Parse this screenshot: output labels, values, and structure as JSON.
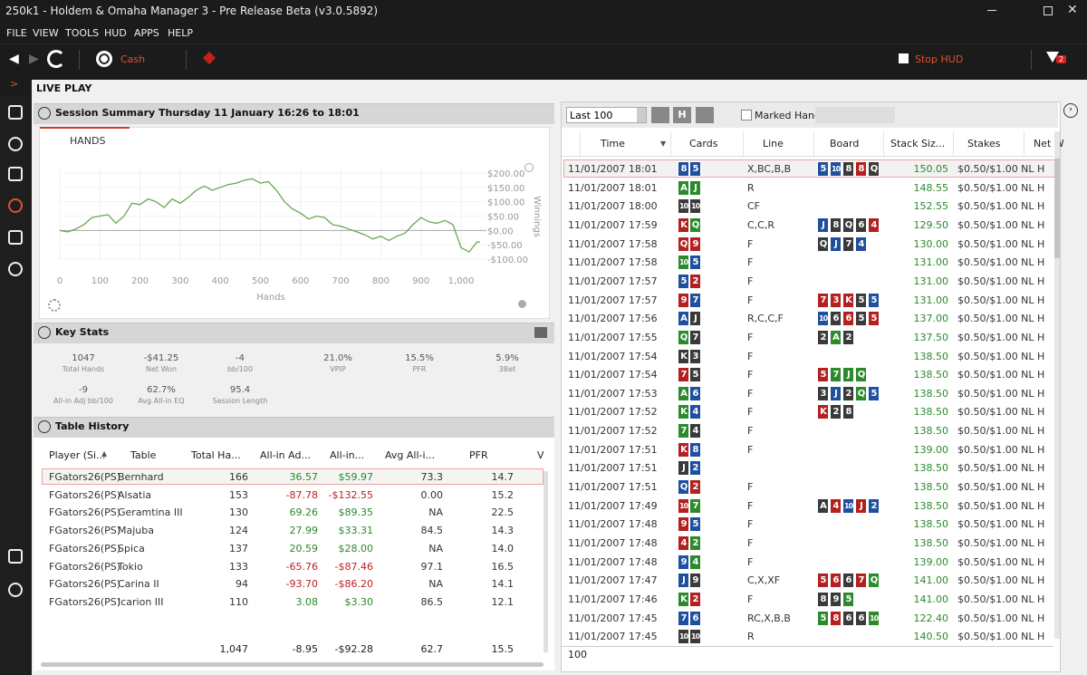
{
  "title_bar": "250k1 - Holdem & Omaha Manager 3 - Pre Release Beta (v3.0.5892)",
  "menu": [
    "FILE",
    "VIEW",
    "TOOLS",
    "HUD",
    "APPS",
    "HELP"
  ],
  "toolbar": {
    "cash": "Cash",
    "stop_hud": "Stop HUD",
    "filter_badge": "2"
  },
  "page_title": "LIVE PLAY",
  "session_summary": {
    "title": "Session Summary Thursday 11 January 16:26 to 18:01",
    "tab": "HANDS",
    "chart": {
      "type": "line",
      "color": "#6aa84f",
      "grid": true,
      "x_label": "Hands",
      "y_label": "Winnings",
      "x": [
        0,
        20,
        40,
        60,
        80,
        100,
        120,
        140,
        160,
        180,
        200,
        220,
        240,
        260,
        280,
        300,
        320,
        340,
        360,
        380,
        400,
        420,
        440,
        460,
        480,
        500,
        520,
        540,
        560,
        580,
        600,
        620,
        640,
        660,
        680,
        700,
        720,
        740,
        760,
        780,
        800,
        820,
        840,
        860,
        880,
        900,
        920,
        940,
        960,
        980,
        1000,
        1020,
        1040,
        1047
      ],
      "values": [
        0,
        -5,
        5,
        20,
        45,
        50,
        55,
        25,
        50,
        95,
        90,
        110,
        100,
        80,
        110,
        95,
        115,
        140,
        155,
        140,
        150,
        160,
        165,
        175,
        180,
        165,
        170,
        140,
        100,
        75,
        60,
        40,
        50,
        45,
        20,
        15,
        5,
        -5,
        -15,
        -30,
        -20,
        -35,
        -20,
        -10,
        20,
        45,
        30,
        25,
        35,
        20,
        -60,
        -75,
        -40,
        -41.25
      ],
      "xlim": [
        0,
        1050
      ],
      "ylim": [
        -100,
        200
      ],
      "xticks": [
        0,
        100,
        200,
        300,
        400,
        500,
        600,
        700,
        800,
        900,
        {
          "value": 1000,
          "label": "1,000"
        }
      ],
      "yticks": [
        {
          "value": 200,
          "label": "$200.00"
        },
        {
          "value": 150,
          "label": "$150.00"
        },
        {
          "value": 100,
          "label": "$100.00"
        },
        {
          "value": 50,
          "label": "$50.00"
        },
        {
          "value": 0,
          "label": "$0.00"
        },
        {
          "value": -50,
          "label": "-$50.00"
        },
        {
          "value": -100,
          "label": "-$100.00"
        }
      ]
    }
  },
  "key_stats": {
    "title": "Key Stats",
    "stats": [
      {
        "value": "1047",
        "label": "Total Hands"
      },
      {
        "value": "-$41.25",
        "label": "Net Won"
      },
      {
        "value": "-4",
        "label": "bb/100"
      },
      {
        "value": "21.0%",
        "label": "VPIP"
      },
      {
        "value": "15.5%",
        "label": "PFR"
      },
      {
        "value": "5.9%",
        "label": "3Bet"
      },
      {
        "value": "-9",
        "label": "All-in Adj bb/100"
      },
      {
        "value": "62.7%",
        "label": "Avg All-in EQ"
      },
      {
        "value": "95.4",
        "label": "Session Length"
      }
    ]
  },
  "table_history": {
    "title": "Table History",
    "columns": [
      "Player (Si...",
      "Table",
      "Total Ha...",
      "All-in Ad...",
      "All-in...",
      "Avg All-i...",
      "PFR",
      "V"
    ],
    "rows": [
      [
        "FGators26(PS)",
        "Bernhard",
        "166",
        "36.57",
        "$59.97",
        "73.3",
        "14.7"
      ],
      [
        "FGators26(PS)",
        "Alsatia",
        "153",
        "-87.78",
        "-$132.55",
        "0.00",
        "15.2"
      ],
      [
        "FGators26(PS)",
        "Geramtina III",
        "130",
        "69.26",
        "$89.35",
        "NA",
        "22.5"
      ],
      [
        "FGators26(PS)",
        "Majuba",
        "124",
        "27.99",
        "$33.31",
        "84.5",
        "14.3"
      ],
      [
        "FGators26(PS)",
        "Spica",
        "137",
        "20.59",
        "$28.00",
        "NA",
        "14.0"
      ],
      [
        "FGators26(PS)",
        "Tokio",
        "133",
        "-65.76",
        "-$87.46",
        "97.1",
        "16.5"
      ],
      [
        "FGators26(PS)",
        "Carina II",
        "94",
        "-93.70",
        "-$86.20",
        "NA",
        "14.1"
      ],
      [
        "FGators26(PS)",
        "Icarion III",
        "110",
        "3.08",
        "$3.30",
        "86.5",
        "12.1"
      ]
    ],
    "totals": [
      "1,047",
      "-8.95",
      "-$92.28",
      "62.7",
      "15.5"
    ]
  },
  "hands": {
    "filter": "Last 100",
    "h_button": "H",
    "marked": "Marked Hands",
    "footer": "100",
    "suit_colors": {
      "r": "#b3201f",
      "b": "#1f4f9f",
      "g": "#2c8a2c",
      "k": "#3a3a3a"
    },
    "columns": [
      "Time",
      "Cards",
      "Line",
      "Board",
      "Stack Siz...",
      "Stakes",
      "Net W"
    ],
    "rows": [
      {
        "time": "11/01/2007 18:01",
        "cards": [
          {
            "rank": "8",
            "suit": "b"
          },
          {
            "rank": "5",
            "suit": "b"
          }
        ],
        "line": "X,BC,B,B",
        "board": [
          {
            "rank": "5",
            "suit": "b"
          },
          {
            "rank": "10",
            "suit": "b"
          },
          {
            "rank": "8",
            "suit": "k"
          },
          {
            "rank": "8",
            "suit": "r"
          },
          {
            "rank": "Q",
            "suit": "k"
          }
        ],
        "stack": "150.05",
        "stakes": "$0.50/$1.00 NL H"
      },
      {
        "time": "11/01/2007 18:01",
        "cards": [
          {
            "rank": "A",
            "suit": "g"
          },
          {
            "rank": "J",
            "suit": "g"
          }
        ],
        "line": "R",
        "board": [],
        "stack": "148.55",
        "stakes": "$0.50/$1.00 NL H"
      },
      {
        "time": "11/01/2007 18:00",
        "cards": [
          {
            "rank": "10",
            "suit": "k"
          },
          {
            "rank": "10",
            "suit": "k"
          }
        ],
        "line": "CF",
        "board": [],
        "stack": "152.55",
        "stakes": "$0.50/$1.00 NL H"
      },
      {
        "time": "11/01/2007 17:59",
        "cards": [
          {
            "rank": "K",
            "suit": "r"
          },
          {
            "rank": "Q",
            "suit": "g"
          }
        ],
        "line": "C,C,R",
        "board": [
          {
            "rank": "J",
            "suit": "b"
          },
          {
            "rank": "8",
            "suit": "k"
          },
          {
            "rank": "Q",
            "suit": "k"
          },
          {
            "rank": "6",
            "suit": "k"
          },
          {
            "rank": "4",
            "suit": "r"
          }
        ],
        "stack": "129.50",
        "stakes": "$0.50/$1.00 NL H"
      },
      {
        "time": "11/01/2007 17:58",
        "cards": [
          {
            "rank": "Q",
            "suit": "r"
          },
          {
            "rank": "9",
            "suit": "r"
          }
        ],
        "line": "F",
        "board": [
          {
            "rank": "Q",
            "suit": "k"
          },
          {
            "rank": "J",
            "suit": "b"
          },
          {
            "rank": "7",
            "suit": "k"
          },
          {
            "rank": "4",
            "suit": "b"
          }
        ],
        "stack": "130.00",
        "stakes": "$0.50/$1.00 NL H"
      },
      {
        "time": "11/01/2007 17:58",
        "cards": [
          {
            "rank": "10",
            "suit": "g"
          },
          {
            "rank": "5",
            "suit": "b"
          }
        ],
        "line": "F",
        "board": [],
        "stack": "131.00",
        "stakes": "$0.50/$1.00 NL H"
      },
      {
        "time": "11/01/2007 17:57",
        "cards": [
          {
            "rank": "5",
            "suit": "b"
          },
          {
            "rank": "2",
            "suit": "r"
          }
        ],
        "line": "F",
        "board": [],
        "stack": "131.00",
        "stakes": "$0.50/$1.00 NL H"
      },
      {
        "time": "11/01/2007 17:57",
        "cards": [
          {
            "rank": "9",
            "suit": "r"
          },
          {
            "rank": "7",
            "suit": "b"
          }
        ],
        "line": "F",
        "board": [
          {
            "rank": "7",
            "suit": "r"
          },
          {
            "rank": "3",
            "suit": "r"
          },
          {
            "rank": "K",
            "suit": "r"
          },
          {
            "rank": "5",
            "suit": "k"
          },
          {
            "rank": "5",
            "suit": "b"
          }
        ],
        "stack": "131.00",
        "stakes": "$0.50/$1.00 NL H"
      },
      {
        "time": "11/01/2007 17:56",
        "cards": [
          {
            "rank": "A",
            "suit": "b"
          },
          {
            "rank": "J",
            "suit": "k"
          }
        ],
        "line": "R,C,C,F",
        "board": [
          {
            "rank": "10",
            "suit": "b"
          },
          {
            "rank": "6",
            "suit": "k"
          },
          {
            "rank": "6",
            "suit": "r"
          },
          {
            "rank": "5",
            "suit": "k"
          },
          {
            "rank": "5",
            "suit": "r"
          }
        ],
        "stack": "137.00",
        "stakes": "$0.50/$1.00 NL H"
      },
      {
        "time": "11/01/2007 17:55",
        "cards": [
          {
            "rank": "Q",
            "suit": "g"
          },
          {
            "rank": "7",
            "suit": "k"
          }
        ],
        "line": "F",
        "board": [
          {
            "rank": "2",
            "suit": "k"
          },
          {
            "rank": "A",
            "suit": "g"
          },
          {
            "rank": "2",
            "suit": "k"
          }
        ],
        "stack": "137.50",
        "stakes": "$0.50/$1.00 NL H"
      },
      {
        "time": "11/01/2007 17:54",
        "cards": [
          {
            "rank": "K",
            "suit": "k"
          },
          {
            "rank": "3",
            "suit": "k"
          }
        ],
        "line": "F",
        "board": [],
        "stack": "138.50",
        "stakes": "$0.50/$1.00 NL H"
      },
      {
        "time": "11/01/2007 17:54",
        "cards": [
          {
            "rank": "7",
            "suit": "r"
          },
          {
            "rank": "5",
            "suit": "k"
          }
        ],
        "line": "F",
        "board": [
          {
            "rank": "5",
            "suit": "r"
          },
          {
            "rank": "7",
            "suit": "g"
          },
          {
            "rank": "J",
            "suit": "g"
          },
          {
            "rank": "Q",
            "suit": "g"
          }
        ],
        "stack": "138.50",
        "stakes": "$0.50/$1.00 NL H"
      },
      {
        "time": "11/01/2007 17:53",
        "cards": [
          {
            "rank": "A",
            "suit": "g"
          },
          {
            "rank": "6",
            "suit": "b"
          }
        ],
        "line": "F",
        "board": [
          {
            "rank": "3",
            "suit": "k"
          },
          {
            "rank": "J",
            "suit": "b"
          },
          {
            "rank": "2",
            "suit": "k"
          },
          {
            "rank": "Q",
            "suit": "g"
          },
          {
            "rank": "5",
            "suit": "b"
          }
        ],
        "stack": "138.50",
        "stakes": "$0.50/$1.00 NL H"
      },
      {
        "time": "11/01/2007 17:52",
        "cards": [
          {
            "rank": "K",
            "suit": "g"
          },
          {
            "rank": "4",
            "suit": "b"
          }
        ],
        "line": "F",
        "board": [
          {
            "rank": "K",
            "suit": "r"
          },
          {
            "rank": "2",
            "suit": "k"
          },
          {
            "rank": "8",
            "suit": "k"
          }
        ],
        "stack": "138.50",
        "stakes": "$0.50/$1.00 NL H"
      },
      {
        "time": "11/01/2007 17:52",
        "cards": [
          {
            "rank": "7",
            "suit": "g"
          },
          {
            "rank": "4",
            "suit": "k"
          }
        ],
        "line": "F",
        "board": [],
        "stack": "138.50",
        "stakes": "$0.50/$1.00 NL H"
      },
      {
        "time": "11/01/2007 17:51",
        "cards": [
          {
            "rank": "K",
            "suit": "r"
          },
          {
            "rank": "8",
            "suit": "b"
          }
        ],
        "line": "F",
        "board": [],
        "stack": "139.00",
        "stakes": "$0.50/$1.00 NL H"
      },
      {
        "time": "11/01/2007 17:51",
        "cards": [
          {
            "rank": "J",
            "suit": "k"
          },
          {
            "rank": "2",
            "suit": "b"
          }
        ],
        "board": [],
        "stack": "138.50",
        "stakes": "$0.50/$1.00 NL H"
      },
      {
        "time": "11/01/2007 17:51",
        "cards": [
          {
            "rank": "Q",
            "suit": "b"
          },
          {
            "rank": "2",
            "suit": "r"
          }
        ],
        "line": "F",
        "board": [],
        "stack": "138.50",
        "stakes": "$0.50/$1.00 NL H"
      },
      {
        "time": "11/01/2007 17:49",
        "cards": [
          {
            "rank": "10",
            "suit": "r"
          },
          {
            "rank": "7",
            "suit": "g"
          }
        ],
        "line": "F",
        "board": [
          {
            "rank": "A",
            "suit": "k"
          },
          {
            "rank": "4",
            "suit": "r"
          },
          {
            "rank": "10",
            "suit": "b"
          },
          {
            "rank": "J",
            "suit": "r"
          },
          {
            "rank": "2",
            "suit": "b"
          }
        ],
        "stack": "138.50",
        "stakes": "$0.50/$1.00 NL H"
      },
      {
        "time": "11/01/2007 17:48",
        "cards": [
          {
            "rank": "9",
            "suit": "r"
          },
          {
            "rank": "5",
            "suit": "b"
          }
        ],
        "line": "F",
        "board": [],
        "stack": "138.50",
        "stakes": "$0.50/$1.00 NL H"
      },
      {
        "time": "11/01/2007 17:48",
        "cards": [
          {
            "rank": "4",
            "suit": "r"
          },
          {
            "rank": "2",
            "suit": "g"
          }
        ],
        "line": "F",
        "board": [],
        "stack": "138.50",
        "stakes": "$0.50/$1.00 NL H"
      },
      {
        "time": "11/01/2007 17:48",
        "cards": [
          {
            "rank": "9",
            "suit": "b"
          },
          {
            "rank": "4",
            "suit": "g"
          }
        ],
        "line": "F",
        "board": [],
        "stack": "139.00",
        "stakes": "$0.50/$1.00 NL H"
      },
      {
        "time": "11/01/2007 17:47",
        "cards": [
          {
            "rank": "J",
            "suit": "b"
          },
          {
            "rank": "9",
            "suit": "k"
          }
        ],
        "line": "C,X,XF",
        "board": [
          {
            "rank": "5",
            "suit": "r"
          },
          {
            "rank": "6",
            "suit": "r"
          },
          {
            "rank": "6",
            "suit": "k"
          },
          {
            "rank": "7",
            "suit": "r"
          },
          {
            "rank": "Q",
            "suit": "g"
          }
        ],
        "stack": "141.00",
        "stakes": "$0.50/$1.00 NL H"
      },
      {
        "time": "11/01/2007 17:46",
        "cards": [
          {
            "rank": "K",
            "suit": "g"
          },
          {
            "rank": "2",
            "suit": "r"
          }
        ],
        "line": "F",
        "board": [
          {
            "rank": "8",
            "suit": "k"
          },
          {
            "rank": "9",
            "suit": "k"
          },
          {
            "rank": "5",
            "suit": "g"
          }
        ],
        "stack": "141.00",
        "stakes": "$0.50/$1.00 NL H"
      },
      {
        "time": "11/01/2007 17:45",
        "cards": [
          {
            "rank": "7",
            "suit": "b"
          },
          {
            "rank": "6",
            "suit": "b"
          }
        ],
        "line": "RC,X,B,B",
        "board": [
          {
            "rank": "5",
            "suit": "g"
          },
          {
            "rank": "8",
            "suit": "r"
          },
          {
            "rank": "6",
            "suit": "k"
          },
          {
            "rank": "6",
            "suit": "k"
          },
          {
            "rank": "10",
            "suit": "g"
          }
        ],
        "stack": "122.40",
        "stakes": "$0.50/$1.00 NL H"
      },
      {
        "time": "11/01/2007 17:45",
        "cards": [
          {
            "rank": "10",
            "suit": "k"
          },
          {
            "rank": "10",
            "suit": "k"
          }
        ],
        "line": "R",
        "board": [],
        "stack": "140.50",
        "stakes": "$0.50/$1.00 NL H"
      }
    ]
  }
}
